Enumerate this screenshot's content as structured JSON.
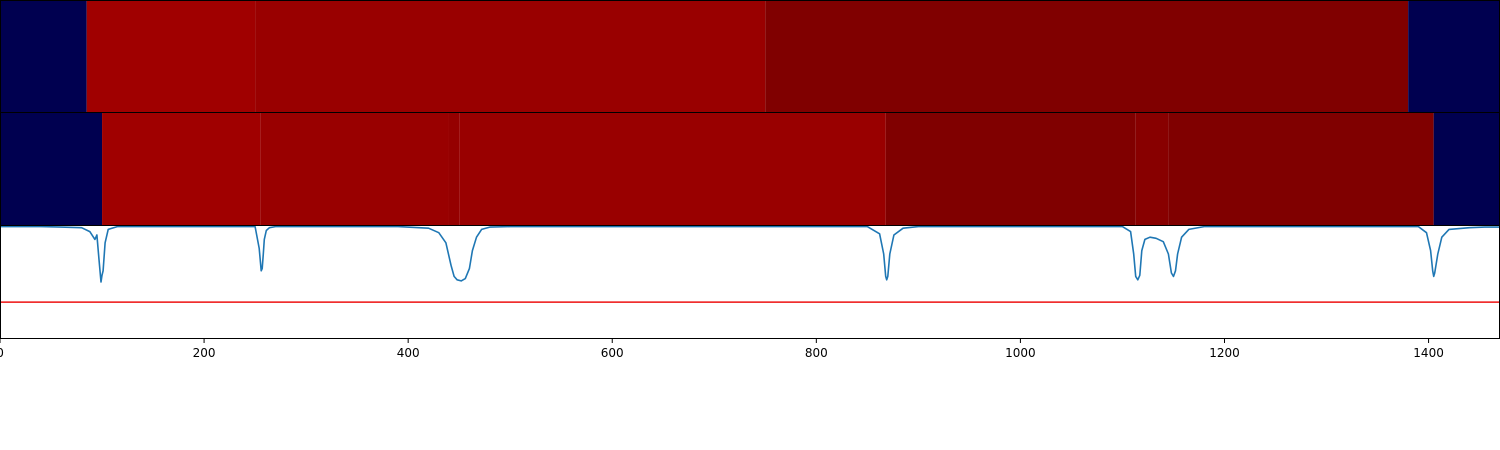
{
  "chart_data": [
    {
      "type": "heatmap",
      "xlim": [
        0,
        1470
      ],
      "segments": [
        {
          "start": 0,
          "end": 85,
          "color": "#000050"
        },
        {
          "start": 85,
          "end": 250,
          "color": "#a00000"
        },
        {
          "start": 250,
          "end": 750,
          "color": "#990000"
        },
        {
          "start": 750,
          "end": 1380,
          "color": "#800000"
        },
        {
          "start": 1380,
          "end": 1470,
          "color": "#000050"
        }
      ]
    },
    {
      "type": "heatmap",
      "xlim": [
        0,
        1470
      ],
      "segments": [
        {
          "start": 0,
          "end": 100,
          "color": "#000050"
        },
        {
          "start": 100,
          "end": 255,
          "color": "#a00000"
        },
        {
          "start": 255,
          "end": 440,
          "color": "#990000"
        },
        {
          "start": 440,
          "end": 450,
          "color": "#950000"
        },
        {
          "start": 450,
          "end": 868,
          "color": "#990000"
        },
        {
          "start": 868,
          "end": 1113,
          "color": "#800000"
        },
        {
          "start": 1113,
          "end": 1145,
          "color": "#880000"
        },
        {
          "start": 1145,
          "end": 1405,
          "color": "#800000"
        },
        {
          "start": 1405,
          "end": 1470,
          "color": "#000050"
        }
      ]
    },
    {
      "type": "line",
      "xlim": [
        0,
        1470
      ],
      "ylim": [
        0,
        1
      ],
      "x_ticks": [
        0,
        200,
        400,
        600,
        800,
        1000,
        1200,
        1400
      ],
      "x_tick_labels": [
        "0",
        "200",
        "400",
        "600",
        "800",
        "1000",
        "1200",
        "1400"
      ],
      "threshold": {
        "value": 0.32,
        "color": "#ee1111"
      },
      "series": [
        {
          "color": "#1f77b4",
          "x": [
            0,
            40,
            60,
            80,
            88,
            93,
            95,
            97,
            99,
            100,
            101,
            103,
            106,
            115,
            250,
            254,
            256,
            257,
            258,
            259,
            261,
            264,
            270,
            390,
            420,
            430,
            437,
            442,
            445,
            448,
            452,
            456,
            460,
            463,
            467,
            472,
            480,
            500,
            850,
            862,
            866,
            868,
            869,
            870,
            872,
            876,
            885,
            900,
            1100,
            1108,
            1111,
            1113,
            1115,
            1117,
            1119,
            1122,
            1127,
            1133,
            1140,
            1145,
            1148,
            1150,
            1152,
            1154,
            1158,
            1165,
            1180,
            1390,
            1398,
            1402,
            1404,
            1405,
            1406,
            1409,
            1413,
            1420,
            1440,
            1455,
            1465,
            1470
          ],
          "y": [
            0.995,
            0.995,
            0.99,
            0.985,
            0.95,
            0.88,
            0.92,
            0.7,
            0.5,
            0.56,
            0.6,
            0.85,
            0.97,
            0.995,
            0.995,
            0.8,
            0.6,
            0.62,
            0.75,
            0.88,
            0.96,
            0.985,
            0.995,
            0.995,
            0.98,
            0.94,
            0.85,
            0.65,
            0.55,
            0.52,
            0.51,
            0.53,
            0.62,
            0.78,
            0.9,
            0.97,
            0.99,
            0.995,
            0.995,
            0.93,
            0.75,
            0.55,
            0.52,
            0.55,
            0.75,
            0.92,
            0.98,
            0.995,
            0.995,
            0.95,
            0.75,
            0.55,
            0.52,
            0.56,
            0.78,
            0.88,
            0.9,
            0.89,
            0.86,
            0.75,
            0.58,
            0.55,
            0.6,
            0.75,
            0.9,
            0.97,
            0.995,
            0.995,
            0.94,
            0.78,
            0.6,
            0.55,
            0.58,
            0.75,
            0.9,
            0.97,
            0.985,
            0.99,
            0.99,
            0.99
          ]
        }
      ]
    }
  ]
}
